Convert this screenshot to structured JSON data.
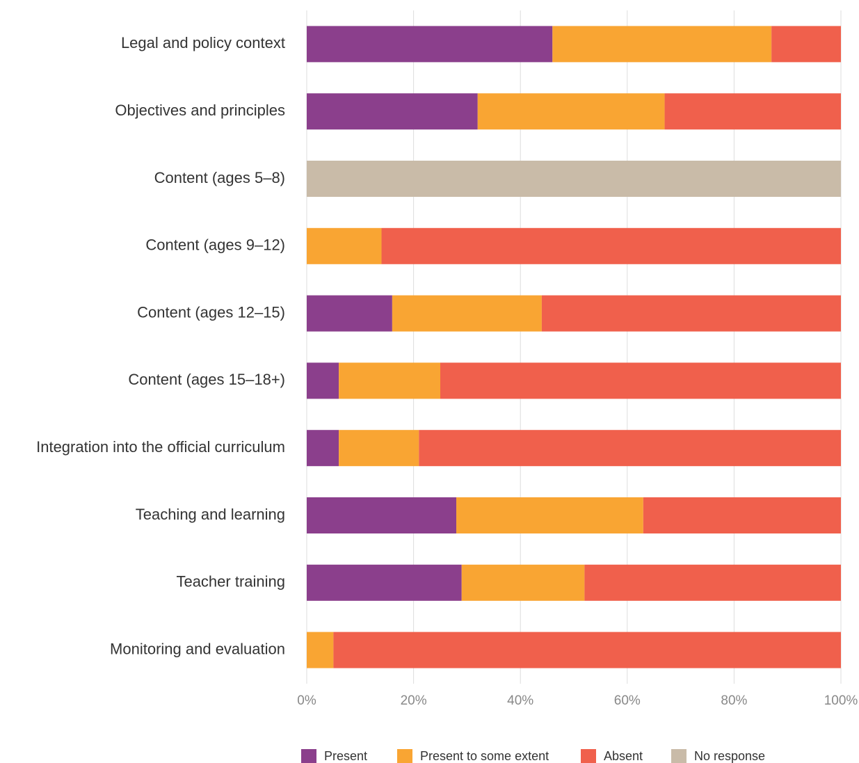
{
  "chart_data": {
    "type": "stacked-bar-horizontal",
    "categories": [
      "Legal and policy context",
      "Objectives and principles",
      "Content (ages 5–8)",
      "Content (ages 9–12)",
      "Content (ages 12–15)",
      "Content (ages 15–18+)",
      "Integration into the official curriculum",
      "Teaching and learning",
      "Teacher training",
      "Monitoring and evaluation"
    ],
    "series": [
      {
        "name": "Present",
        "color": "#8b3f8c",
        "values": [
          46,
          32,
          0,
          0,
          16,
          6,
          6,
          28,
          29,
          0
        ]
      },
      {
        "name": "Present to some extent",
        "color": "#f9a533",
        "values": [
          41,
          35,
          0,
          14,
          28,
          19,
          15,
          35,
          23,
          5
        ]
      },
      {
        "name": "Absent",
        "color": "#f0604c",
        "values": [
          13,
          33,
          0,
          86,
          56,
          75,
          79,
          37,
          48,
          95
        ]
      },
      {
        "name": "No response",
        "color": "#c9bba8",
        "values": [
          0,
          0,
          100,
          0,
          0,
          0,
          0,
          0,
          0,
          0
        ]
      }
    ],
    "xlim": [
      0,
      100
    ],
    "xticks": [
      {
        "value": 0,
        "label": "0%"
      },
      {
        "value": 20,
        "label": "20%"
      },
      {
        "value": 40,
        "label": "40%"
      },
      {
        "value": 60,
        "label": "60%"
      },
      {
        "value": 80,
        "label": "80%"
      },
      {
        "value": 100,
        "label": "100%"
      }
    ],
    "grid": true,
    "legend": "bottom"
  }
}
